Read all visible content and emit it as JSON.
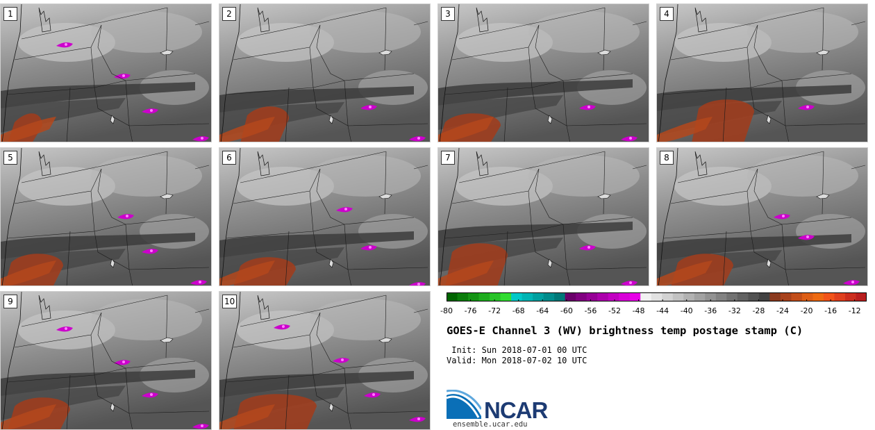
{
  "panels": [
    {
      "label": "1"
    },
    {
      "label": "2"
    },
    {
      "label": "3"
    },
    {
      "label": "4"
    },
    {
      "label": "5"
    },
    {
      "label": "6"
    },
    {
      "label": "7"
    },
    {
      "label": "8"
    },
    {
      "label": "9"
    },
    {
      "label": "10"
    }
  ],
  "colorbar": {
    "ticks": [
      "-80",
      "-76",
      "-72",
      "-68",
      "-64",
      "-60",
      "-56",
      "-52",
      "-48",
      "-44",
      "-40",
      "-36",
      "-32",
      "-28",
      "-24",
      "-20",
      "-16",
      "-12"
    ],
    "min": -80,
    "max": -10,
    "step": 2,
    "colors": [
      "#006400",
      "#0a7c0a",
      "#149414",
      "#1eac1e",
      "#28c428",
      "#32dc32",
      "#00c8c8",
      "#00b4b4",
      "#00a0a0",
      "#008c8c",
      "#007878",
      "#6a006a",
      "#800080",
      "#960096",
      "#ac00ac",
      "#c200c2",
      "#d800d8",
      "#e800e8",
      "#f2f2f2",
      "#e2e2e2",
      "#d2d2d2",
      "#c2c2c2",
      "#b2b2b2",
      "#a2a2a2",
      "#929292",
      "#828282",
      "#727272",
      "#626262",
      "#525252",
      "#424242",
      "#8b3a1e",
      "#a8421c",
      "#c24e1a",
      "#dd5e16",
      "#ee6a12",
      "#f2541a",
      "#e0401e",
      "#cc2e1e",
      "#b81e1e"
    ]
  },
  "title": "GOES-E Channel 3 (WV) brightness temp postage stamp (C)",
  "init_text": "Init: Sun 2018-07-01 00 UTC",
  "valid_text": "Valid: Mon 2018-07-02 10 UTC",
  "logo": {
    "text": "NCAR",
    "url": "ensemble.ucar.edu"
  }
}
